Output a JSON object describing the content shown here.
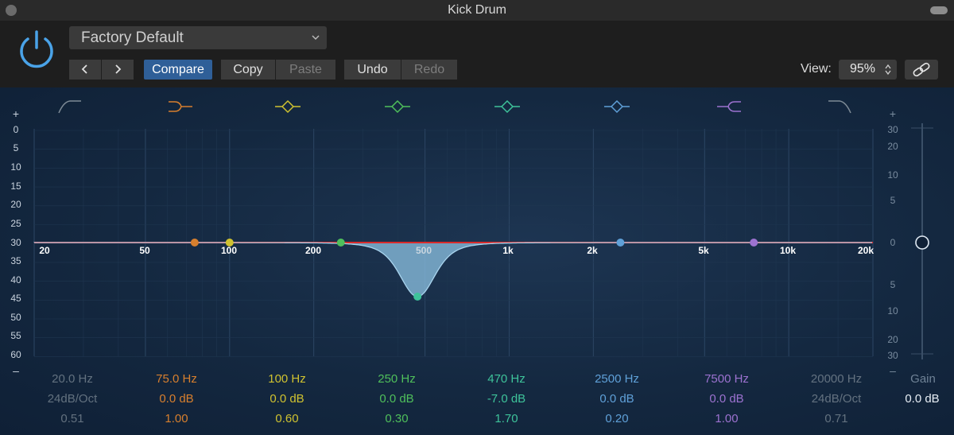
{
  "window": {
    "title": "Kick Drum"
  },
  "header": {
    "preset": "Factory Default",
    "compare_label": "Compare",
    "copy_label": "Copy",
    "paste_label": "Paste",
    "undo_label": "Undo",
    "redo_label": "Redo",
    "view_label": "View:",
    "view_value": "95%"
  },
  "colors": {
    "accent": "#2f5f98",
    "curve": "#d92b2b",
    "band1": "#7e8b96",
    "band2": "#d77f2e",
    "band3": "#cfc230",
    "band4": "#4fbf5b",
    "band5": "#3ec39a",
    "band6": "#5fa0d8",
    "band7": "#9c72d0",
    "band8": "#7e8b96"
  },
  "left_scale": {
    "plus": "+",
    "minus": "–",
    "ticks": [
      "0",
      "5",
      "10",
      "15",
      "20",
      "25",
      "30",
      "35",
      "40",
      "45",
      "50",
      "55",
      "60"
    ]
  },
  "right_scale": {
    "plus": "+",
    "minus": "–",
    "ticks": [
      "30",
      "20",
      "10",
      "5",
      "0",
      "5",
      "10",
      "20",
      "30"
    ]
  },
  "freq_labels": [
    "20",
    "50",
    "100",
    "200",
    "500",
    "1k",
    "2k",
    "5k",
    "10k",
    "20k"
  ],
  "bands": [
    {
      "icon": "low-cut-icon",
      "freq": "20.0 Hz",
      "gain": "24dB/Oct",
      "q": "0.51",
      "active": false
    },
    {
      "icon": "low-shelf-icon",
      "freq": "75.0 Hz",
      "gain": "0.0 dB",
      "q": "1.00",
      "active": true
    },
    {
      "icon": "bell-icon",
      "freq": "100 Hz",
      "gain": "0.0 dB",
      "q": "0.60",
      "active": true
    },
    {
      "icon": "bell-icon",
      "freq": "250 Hz",
      "gain": "0.0 dB",
      "q": "0.30",
      "active": true
    },
    {
      "icon": "bell-icon",
      "freq": "470 Hz",
      "gain": "-7.0 dB",
      "q": "1.70",
      "active": true
    },
    {
      "icon": "bell-icon",
      "freq": "2500 Hz",
      "gain": "0.0 dB",
      "q": "0.20",
      "active": true
    },
    {
      "icon": "high-shelf-icon",
      "freq": "7500 Hz",
      "gain": "0.0 dB",
      "q": "1.00",
      "active": true
    },
    {
      "icon": "high-cut-icon",
      "freq": "20000 Hz",
      "gain": "24dB/Oct",
      "q": "0.71",
      "active": false
    }
  ],
  "output": {
    "label": "Gain",
    "value": "0.0 dB"
  }
}
